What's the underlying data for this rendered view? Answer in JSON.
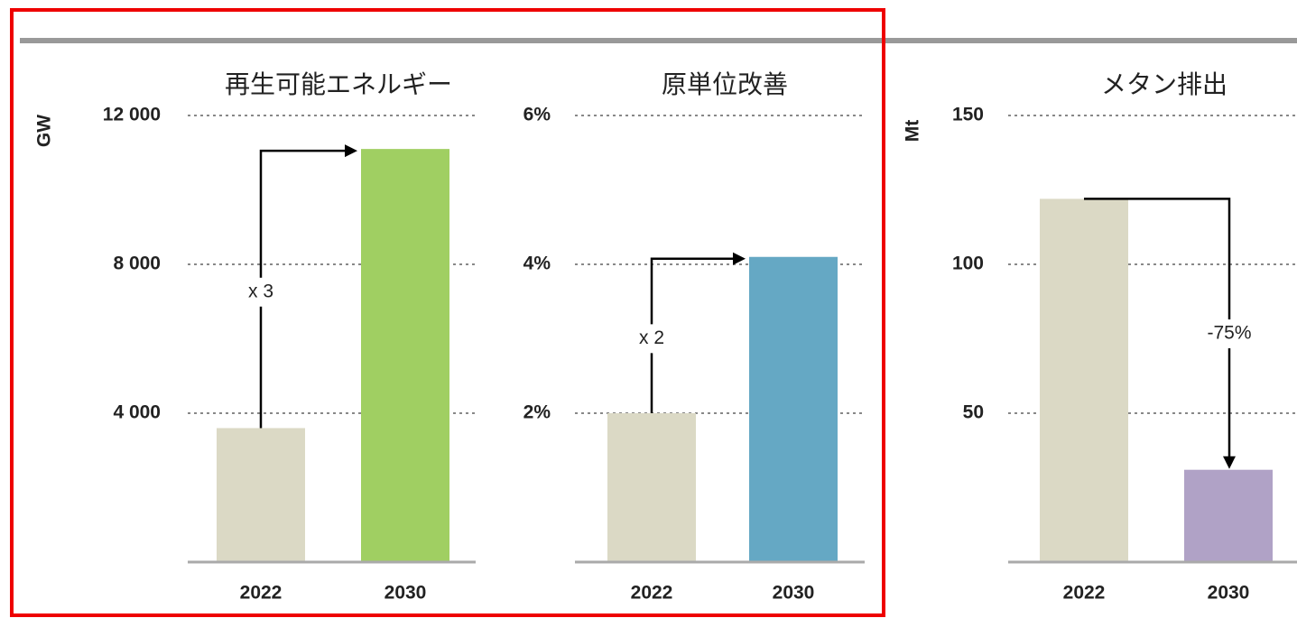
{
  "chart_data": [
    {
      "type": "bar",
      "title": "再生可能エネルギー",
      "y_label": "GW",
      "annotation": "x 3",
      "categories": [
        "2022",
        "2030"
      ],
      "values": [
        3600,
        11100
      ],
      "colors": [
        "#dbd9c5",
        "#a0cf62"
      ],
      "ylim": [
        0,
        12000
      ],
      "yticks": [
        {
          "value": 4000,
          "label": "4 000"
        },
        {
          "value": 8000,
          "label": "8 000"
        },
        {
          "value": 12000,
          "label": "12 000"
        }
      ],
      "grid": true
    },
    {
      "type": "bar",
      "title": "原単位改善",
      "annotation": "x 2",
      "categories": [
        "2022",
        "2030"
      ],
      "values": [
        2,
        4.1
      ],
      "colors": [
        "#dbd9c5",
        "#65a8c4"
      ],
      "ylim": [
        0,
        6
      ],
      "yticks": [
        {
          "value": 2,
          "label": "2%"
        },
        {
          "value": 4,
          "label": "4%"
        },
        {
          "value": 6,
          "label": "6%"
        }
      ],
      "grid": true
    },
    {
      "type": "bar",
      "title": "メタン排出",
      "y_label": "Mt",
      "annotation": "-75%",
      "categories": [
        "2022",
        "2030"
      ],
      "values": [
        122,
        31
      ],
      "colors": [
        "#dbd9c5",
        "#b0a2c6"
      ],
      "ylim": [
        0,
        150
      ],
      "yticks": [
        50,
        100,
        150
      ],
      "grid": true
    }
  ]
}
